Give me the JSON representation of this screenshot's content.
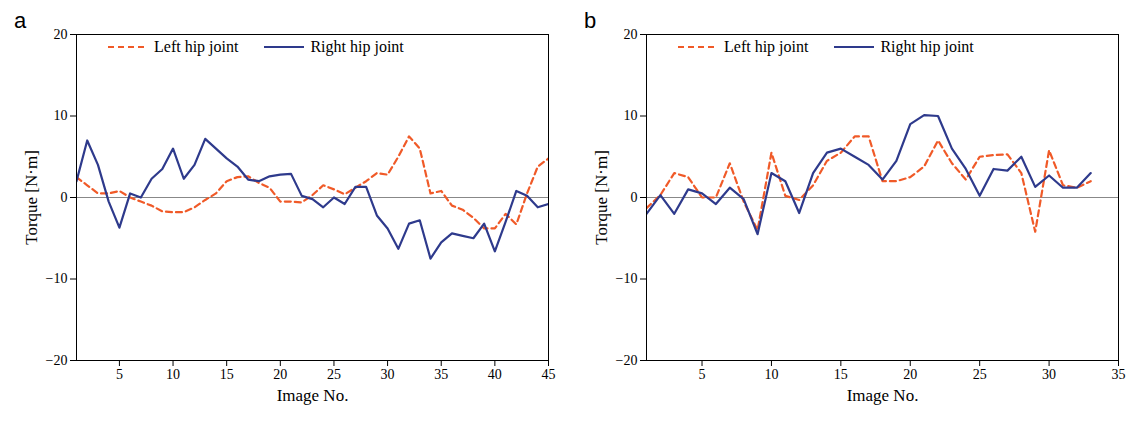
{
  "chart_data": [
    {
      "type": "line",
      "title": "a",
      "x_label": "Image No.",
      "y_label": "Torque [N·m]",
      "x": [
        1,
        2,
        3,
        4,
        5,
        6,
        7,
        8,
        9,
        10,
        11,
        12,
        13,
        14,
        15,
        16,
        17,
        18,
        19,
        20,
        21,
        22,
        23,
        24,
        25,
        26,
        27,
        28,
        29,
        30,
        31,
        32,
        33,
        34,
        35,
        36,
        37,
        38,
        39,
        40,
        41,
        42,
        43,
        44,
        45
      ],
      "xlim": [
        1,
        45
      ],
      "xticks": [
        5,
        10,
        15,
        20,
        25,
        30,
        35,
        40,
        45
      ],
      "ylim": [
        -20,
        20
      ],
      "yticks": [
        -20,
        -10,
        0,
        10,
        20
      ],
      "grid": false,
      "legend": "top",
      "series": [
        {
          "name": "Left hip joint",
          "color": "#f05a28",
          "line_style": "dashed",
          "values": [
            2.5,
            1.5,
            0.5,
            0.5,
            0.8,
            0,
            -0.5,
            -1,
            -1.7,
            -1.8,
            -1.8,
            -1.2,
            -0.3,
            0.5,
            2,
            2.5,
            2.6,
            1.8,
            1.2,
            -0.5,
            -0.5,
            -0.6,
            0.3,
            1.5,
            1,
            0.4,
            1.2,
            2,
            3,
            2.8,
            5,
            7.5,
            6,
            0.5,
            0.8,
            -1,
            -1.5,
            -2.5,
            -3.8,
            -3.8,
            -2,
            -3.3,
            0.5,
            3.8,
            4.8
          ]
        },
        {
          "name": "Right hip joint",
          "color": "#2e3a8c",
          "line_style": "solid",
          "values": [
            2,
            7,
            4,
            -0.5,
            -3.7,
            0.5,
            0,
            2.3,
            3.5,
            6,
            2.3,
            4,
            7.2,
            6,
            4.8,
            3.8,
            2.2,
            2,
            2.6,
            2.8,
            2.9,
            0.2,
            -0.2,
            -1.2,
            0,
            -0.8,
            1.3,
            1.3,
            -2.2,
            -3.8,
            -6.3,
            -3.2,
            -2.8,
            -7.5,
            -5.5,
            -4.4,
            -4.7,
            -5,
            -3.2,
            -6.6,
            -3,
            0.8,
            0.2,
            -1.2,
            -0.8
          ]
        }
      ]
    },
    {
      "type": "line",
      "title": "b",
      "x_label": "Image No.",
      "y_label": "Torque [N·m]",
      "x": [
        1,
        2,
        3,
        4,
        5,
        6,
        7,
        8,
        9,
        10,
        11,
        12,
        13,
        14,
        15,
        16,
        17,
        18,
        19,
        20,
        21,
        22,
        23,
        24,
        25,
        26,
        27,
        28,
        29,
        30,
        31,
        32,
        33
      ],
      "xlim": [
        1,
        35
      ],
      "xticks": [
        5,
        10,
        15,
        20,
        25,
        30,
        35
      ],
      "ylim": [
        -20,
        20
      ],
      "yticks": [
        -20,
        -10,
        0,
        10,
        20
      ],
      "grid": false,
      "legend": "top",
      "series": [
        {
          "name": "Left hip joint",
          "color": "#f05a28",
          "line_style": "dashed",
          "values": [
            -1.3,
            0.3,
            3,
            2.5,
            0,
            0,
            4.2,
            -0.5,
            -4,
            5.5,
            0.2,
            -0.3,
            1.5,
            4.5,
            5.5,
            7.5,
            7.5,
            2,
            2,
            2.5,
            3.8,
            7,
            4.2,
            2.2,
            5,
            5.2,
            5.3,
            3,
            -4.2,
            5.8,
            1.5,
            1.2,
            2
          ]
        },
        {
          "name": "Right hip joint",
          "color": "#2e3a8c",
          "line_style": "solid",
          "values": [
            -2,
            0.3,
            -2,
            1,
            0.5,
            -0.8,
            1.2,
            -0.2,
            -4.5,
            3,
            2,
            -1.9,
            3,
            5.5,
            6,
            5,
            4,
            2.2,
            4.5,
            9,
            10.1,
            10,
            6,
            3.5,
            0.2,
            3.5,
            3.3,
            5,
            1.3,
            2.7,
            1.2,
            1.2,
            3
          ]
        }
      ]
    }
  ]
}
